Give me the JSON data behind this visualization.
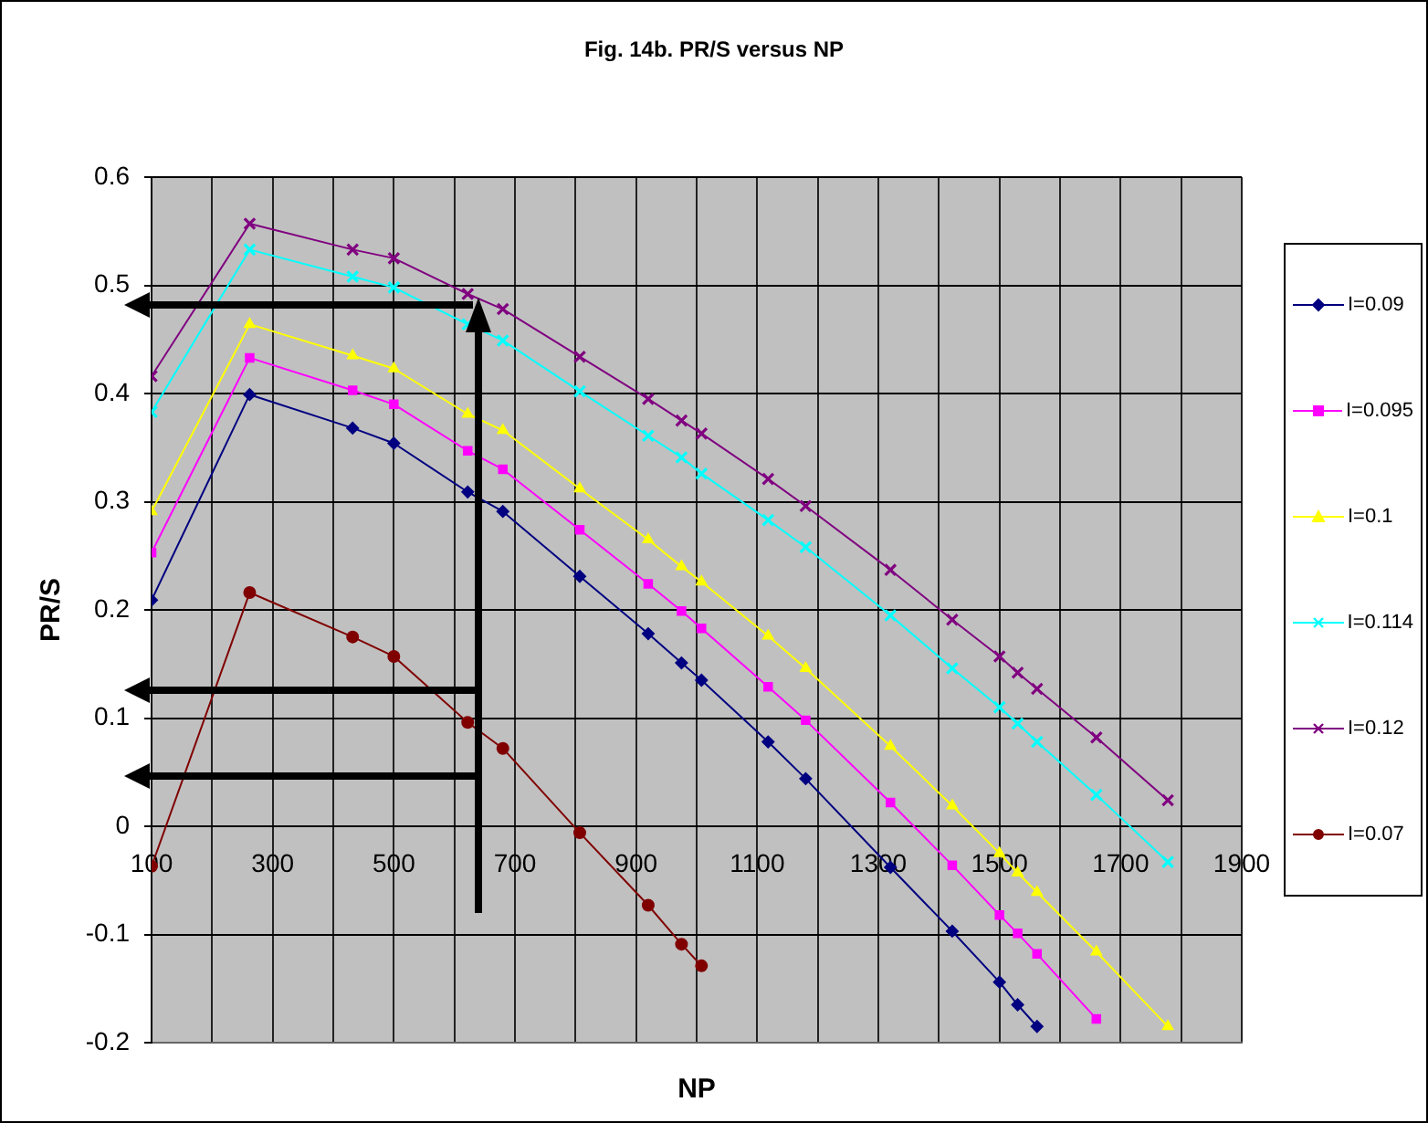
{
  "chart_data": {
    "type": "line",
    "title": "Fig. 14b. PR/S versus NP",
    "xlabel": "NP",
    "ylabel": "PR/S",
    "x": [
      100,
      262,
      432,
      500,
      622,
      680,
      807,
      920,
      975,
      1008,
      1118,
      1180,
      1320,
      1422,
      1500,
      1530,
      1562,
      1660,
      1778
    ],
    "series": [
      {
        "name": "I=0.09",
        "color": "#000080",
        "marker": "diamond",
        "values": [
          0.209,
          0.399,
          0.368,
          0.354,
          0.309,
          0.291,
          0.231,
          0.178,
          0.151,
          0.135,
          0.078,
          0.044,
          -0.038,
          -0.097,
          -0.144,
          -0.165,
          -0.185,
          null,
          null
        ]
      },
      {
        "name": "I=0.095",
        "color": "#ff00ff",
        "marker": "square",
        "values": [
          0.253,
          0.433,
          0.403,
          0.39,
          0.347,
          0.33,
          0.274,
          0.224,
          0.199,
          0.183,
          0.129,
          0.098,
          0.022,
          -0.036,
          -0.082,
          -0.099,
          -0.118,
          -0.178,
          null
        ]
      },
      {
        "name": "I=0.1",
        "color": "#ffff00",
        "marker": "triangle",
        "values": [
          0.291,
          0.464,
          0.435,
          0.423,
          0.381,
          0.366,
          0.312,
          0.265,
          0.24,
          0.226,
          0.176,
          0.146,
          0.074,
          0.019,
          -0.025,
          -0.043,
          -0.061,
          -0.116,
          -0.185
        ]
      },
      {
        "name": "I=0.114",
        "color": "#00ffff",
        "marker": "cross",
        "values": [
          0.383,
          0.533,
          0.508,
          0.498,
          0.464,
          0.449,
          0.402,
          0.361,
          0.341,
          0.326,
          0.283,
          0.258,
          0.195,
          0.146,
          0.11,
          0.095,
          0.078,
          0.029,
          -0.033
        ]
      },
      {
        "name": "I=0.12",
        "color": "#800080",
        "marker": "cross",
        "values": [
          0.416,
          0.557,
          0.533,
          0.525,
          0.492,
          0.478,
          0.434,
          0.395,
          0.375,
          0.363,
          0.321,
          0.296,
          0.237,
          0.191,
          0.157,
          0.142,
          0.127,
          0.082,
          0.024
        ]
      },
      {
        "name": "I=0.07",
        "color": "#800000",
        "marker": "circle",
        "values": [
          -0.037,
          0.216,
          0.175,
          0.157,
          0.096,
          0.072,
          -0.006,
          -0.073,
          -0.109,
          -0.129,
          null,
          null,
          null,
          null,
          null,
          null,
          null,
          null,
          null
        ]
      }
    ],
    "xlim": [
      100,
      1900
    ],
    "xticks": [
      100,
      {
        "value": 200,
        "label": null
      },
      300,
      {
        "value": 400,
        "label": null
      },
      500,
      {
        "value": 600,
        "label": null
      },
      700,
      {
        "value": 800,
        "label": null
      },
      900,
      {
        "value": 1000,
        "label": null
      },
      1100,
      {
        "value": 1200,
        "label": null
      },
      1300,
      {
        "value": 1400,
        "label": null
      },
      1500,
      {
        "value": 1600,
        "label": null
      },
      1700,
      {
        "value": 1800,
        "label": null
      },
      1900
    ],
    "ylim": [
      -0.2,
      0.6
    ],
    "yticks": [
      -0.2,
      -0.1,
      0,
      0.1,
      0.2,
      0.3,
      0.4,
      0.5,
      0.6
    ],
    "grid": true,
    "legend": "right",
    "line_style": "solid"
  }
}
